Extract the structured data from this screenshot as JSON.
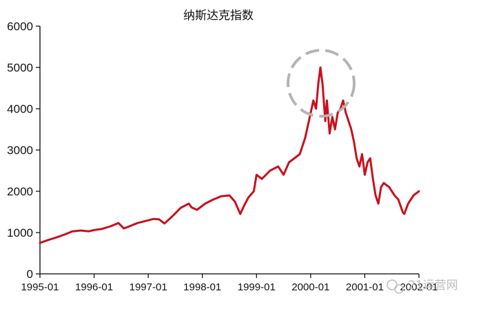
{
  "chart_data": {
    "type": "line",
    "title": "纳斯达克指数",
    "xlabel": "",
    "ylabel": "",
    "ylim": [
      0,
      6000
    ],
    "yticks": [
      "0",
      "1000",
      "2000",
      "3000",
      "4000",
      "5000",
      "6000"
    ],
    "x_tick_labels": [
      "1995-01",
      "1996-01",
      "1997-01",
      "1998-01",
      "1999-01",
      "2000-01",
      "2001-01",
      "2002-01"
    ],
    "xlim": [
      1995.0,
      2002.0
    ],
    "grid": false,
    "legend": "none",
    "series": [
      {
        "color": "#c8101c",
        "x": [
          1995.0,
          1995.15,
          1995.3,
          1995.45,
          1995.6,
          1995.75,
          1995.9,
          1996.0,
          1996.15,
          1996.3,
          1996.45,
          1996.55,
          1996.65,
          1996.8,
          1996.95,
          1997.1,
          1997.2,
          1997.3,
          1997.45,
          1997.6,
          1997.75,
          1997.8,
          1997.9,
          1998.05,
          1998.2,
          1998.35,
          1998.5,
          1998.6,
          1998.7,
          1998.77,
          1998.85,
          1998.95,
          1999.0,
          1999.1,
          1999.25,
          1999.4,
          1999.5,
          1999.6,
          1999.7,
          1999.8,
          1999.9,
          2000.0,
          2000.05,
          2000.1,
          2000.14,
          2000.18,
          2000.22,
          2000.27,
          2000.3,
          2000.35,
          2000.4,
          2000.45,
          2000.5,
          2000.55,
          2000.6,
          2000.65,
          2000.7,
          2000.75,
          2000.8,
          2000.85,
          2000.9,
          2000.95,
          2001.0,
          2001.05,
          2001.1,
          2001.15,
          2001.2,
          2001.25,
          2001.3,
          2001.35,
          2001.45,
          2001.55,
          2001.62,
          2001.7,
          2001.73,
          2001.8,
          2001.9,
          2002.0
        ],
        "y": [
          750,
          820,
          880,
          950,
          1030,
          1050,
          1030,
          1060,
          1090,
          1150,
          1230,
          1100,
          1150,
          1230,
          1280,
          1330,
          1320,
          1220,
          1400,
          1600,
          1700,
          1610,
          1550,
          1700,
          1800,
          1880,
          1900,
          1750,
          1450,
          1650,
          1850,
          2000,
          2400,
          2300,
          2500,
          2600,
          2400,
          2700,
          2800,
          2900,
          3300,
          3900,
          4200,
          4000,
          4600,
          5000,
          4600,
          3700,
          4200,
          3400,
          3800,
          3500,
          3900,
          4000,
          4200,
          3900,
          3700,
          3500,
          3200,
          2800,
          2600,
          2900,
          2400,
          2700,
          2800,
          2300,
          1900,
          1700,
          2100,
          2200,
          2100,
          1900,
          1800,
          1500,
          1450,
          1700,
          1900,
          2000
        ]
      }
    ],
    "annotation": "dashed circle around the early-2000 peak"
  },
  "watermark": {
    "text": "21运营网"
  }
}
